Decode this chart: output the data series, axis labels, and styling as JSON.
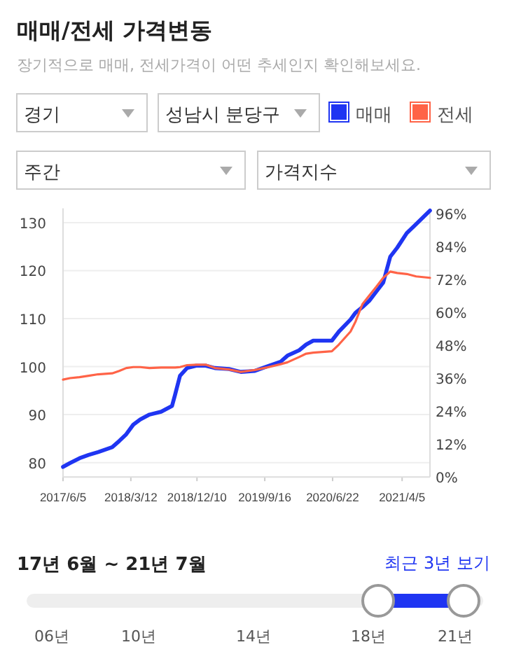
{
  "chart_data": {
    "type": "line",
    "title": "매매/전세 가격변동",
    "subtitle": "장기적으로 매매, 전세가격이 어떤 추세인지 확인해보세요.",
    "x": [
      "2017-06-05",
      "2017-07-04",
      "2017-08-12",
      "2017-09-19",
      "2017-10-28",
      "2017-12-25",
      "2018-01-23",
      "2018-02-21",
      "2018-03-22",
      "2018-04-20",
      "2018-05-28",
      "2018-07-15",
      "2018-08-29",
      "2018-09-11",
      "2018-10-01",
      "2018-10-30",
      "2018-12-07",
      "2019-01-15",
      "2019-02-22",
      "2019-04-21",
      "2019-06-09",
      "2019-08-06",
      "2019-09-23",
      "2019-11-20",
      "2019-12-19",
      "2020-02-05",
      "2020-03-05",
      "2020-04-03",
      "2020-06-19",
      "2020-07-18",
      "2020-09-04",
      "2020-09-24",
      "2020-10-23",
      "2020-11-20",
      "2020-12-19",
      "2021-01-17",
      "2021-02-15",
      "2021-03-16",
      "2021-04-24",
      "2021-06-02",
      "2021-07-29"
    ],
    "series": [
      {
        "name": "매매",
        "color": "#1f35f2",
        "values": [
          79.1,
          79.9,
          80.9,
          81.6,
          82.2,
          83.2,
          84.5,
          85.9,
          87.9,
          89.0,
          90.0,
          90.6,
          91.8,
          94.2,
          98.1,
          99.7,
          100.2,
          100.2,
          99.7,
          99.5,
          98.9,
          99.1,
          100.0,
          101.0,
          102.3,
          103.4,
          104.6,
          105.4,
          105.4,
          107.3,
          109.8,
          111.2,
          112.4,
          113.7,
          115.6,
          117.5,
          122.9,
          124.8,
          127.8,
          129.7,
          132.5
        ]
      },
      {
        "name": "전세",
        "color": "#ff6347",
        "values": [
          97.3,
          97.6,
          97.8,
          98.1,
          98.4,
          98.6,
          99.1,
          99.7,
          99.9,
          99.9,
          99.7,
          99.8,
          99.8,
          99.8,
          99.9,
          100.3,
          100.4,
          100.4,
          99.7,
          99.4,
          98.9,
          99.3,
          99.8,
          100.5,
          100.9,
          102.0,
          102.7,
          102.9,
          103.2,
          104.6,
          107.3,
          109.3,
          113.0,
          114.8,
          116.6,
          118.5,
          119.8,
          119.5,
          119.3,
          118.8,
          118.5
        ]
      }
    ],
    "xlim": [
      "2017-06-05",
      "2021-07-29"
    ],
    "xticks": [
      {
        "value": "2017-06-05",
        "label": "2017/6/5"
      },
      {
        "value": "2018-03-12",
        "label": "2018/3/12"
      },
      {
        "value": "2018-12-10",
        "label": "2018/12/10"
      },
      {
        "value": "2019-09-16",
        "label": "2019/9/16"
      },
      {
        "value": "2020-06-22",
        "label": "2020/6/22"
      },
      {
        "value": "2021-04-05",
        "label": "2021/4/5"
      }
    ],
    "ylim": [
      77,
      133
    ],
    "yticks": [
      80,
      90,
      100,
      110,
      120,
      130
    ],
    "y2lim": [
      0,
      98
    ],
    "y2ticks": [
      {
        "value": 0,
        "label": "0%"
      },
      {
        "value": 12,
        "label": "12%"
      },
      {
        "value": 24,
        "label": "24%"
      },
      {
        "value": 36,
        "label": "36%"
      },
      {
        "value": 48,
        "label": "48%"
      },
      {
        "value": 60,
        "label": "60%"
      },
      {
        "value": 72,
        "label": "72%"
      },
      {
        "value": 84,
        "label": "84%"
      },
      {
        "value": 96,
        "label": "96%"
      }
    ],
    "grid": "y",
    "legend": "top right",
    "marker": "none",
    "line_style": "solid",
    "annotations": [
      "경기",
      "성남시 분당구",
      "주간",
      "가격지수",
      "17년 6월 ~ 21년 7월",
      "최근 3년 보기",
      "06년",
      "10년",
      "14년",
      "18년",
      "21년"
    ]
  }
}
